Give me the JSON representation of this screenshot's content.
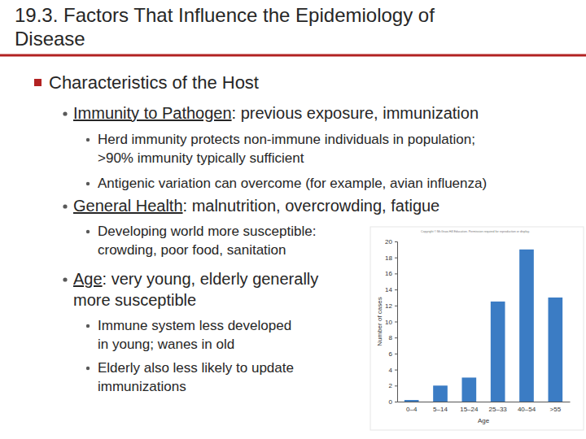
{
  "slide": {
    "title": [
      "19.3. Factors That Influence the Epidemiology of",
      "Disease"
    ],
    "heading": "Characteristics of the Host",
    "items": [
      {
        "term": "Immunity to Pathogen",
        "text": [
          ": previous exposure, immunization"
        ],
        "subitems": [
          [
            "Herd immunity protects non-immune individuals in population;",
            ">90% immunity typically sufficient"
          ],
          [
            "Antigenic variation can overcome (for example, avian influenza)"
          ]
        ]
      },
      {
        "term": "General Health",
        "text": [
          ": malnutrition, overcrowding, fatigue"
        ],
        "subitems": [
          [
            "Developing world more susceptible:",
            "crowding, poor food, sanitation"
          ]
        ]
      },
      {
        "term": "Age",
        "text": [
          ": very young, elderly generally",
          "more susceptible"
        ],
        "subitems": [
          [
            "Immune system less developed",
            "in young; wanes in old"
          ],
          [
            "Elderly also less likely to update",
            "immunizations"
          ]
        ]
      }
    ],
    "credit": "Copyright © McGraw-Hill Education. Permission required for reproduction or display."
  },
  "chart_data": {
    "type": "bar",
    "x_label": "Age",
    "y_label": "Number of cases",
    "categories": [
      "0–4",
      "5–14",
      "15–24",
      "25–33",
      "40–54",
      ">55"
    ],
    "values": [
      0.2,
      2,
      3,
      12.5,
      19,
      13
    ],
    "color": "#3b7cc4",
    "ylim": [
      0,
      20
    ],
    "yticks": [
      0,
      2,
      4,
      6,
      8,
      10,
      12,
      14,
      16,
      18,
      20
    ],
    "grid": false
  }
}
